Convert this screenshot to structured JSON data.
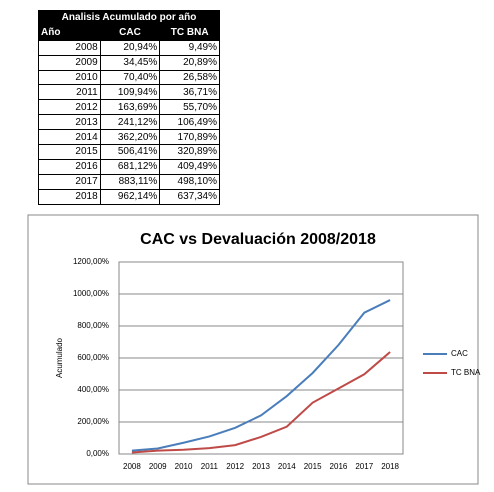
{
  "table": {
    "title": "Analisis Acumulado por año",
    "header": [
      "Año",
      "CAC",
      "TC BNA"
    ],
    "rows": [
      [
        "2008",
        "20,94%",
        "9,49%"
      ],
      [
        "2009",
        "34,45%",
        "20,89%"
      ],
      [
        "2010",
        "70,40%",
        "26,58%"
      ],
      [
        "2011",
        "109,94%",
        "36,71%"
      ],
      [
        "2012",
        "163,69%",
        "55,70%"
      ],
      [
        "2013",
        "241,12%",
        "106,49%"
      ],
      [
        "2014",
        "362,20%",
        "170,89%"
      ],
      [
        "2015",
        "506,41%",
        "320,89%"
      ],
      [
        "2016",
        "681,12%",
        "409,49%"
      ],
      [
        "2017",
        "883,11%",
        "498,10%"
      ],
      [
        "2018",
        "962,14%",
        "637,34%"
      ]
    ]
  },
  "chart_data": {
    "type": "line",
    "title": "CAC vs Devaluación 2008/2018",
    "y_label": "Acumulado",
    "categories": [
      "2008",
      "2009",
      "2010",
      "2011",
      "2012",
      "2013",
      "2014",
      "2015",
      "2016",
      "2017",
      "2018"
    ],
    "series": [
      {
        "name": "CAC",
        "color": "#4a7ebb",
        "values": [
          20.94,
          34.45,
          70.4,
          109.94,
          163.69,
          241.12,
          362.2,
          506.41,
          681.12,
          883.11,
          962.14
        ]
      },
      {
        "name": "TC BNA",
        "color": "#be4b48",
        "values": [
          9.49,
          20.89,
          26.58,
          36.71,
          55.7,
          106.49,
          170.89,
          320.89,
          409.49,
          498.1,
          637.34
        ]
      }
    ],
    "ylim": [
      0,
      1200
    ],
    "yticks": [
      {
        "value": 0,
        "label": "0,00%"
      },
      {
        "value": 200,
        "label": "200,00%"
      },
      {
        "value": 400,
        "label": "400,00%"
      },
      {
        "value": 600,
        "label": "600,00%"
      },
      {
        "value": 800,
        "label": "800,00%"
      },
      {
        "value": 1000,
        "label": "1000,00%"
      },
      {
        "value": 1200,
        "label": "1200,00%"
      }
    ],
    "grid": true,
    "legend": "right"
  }
}
